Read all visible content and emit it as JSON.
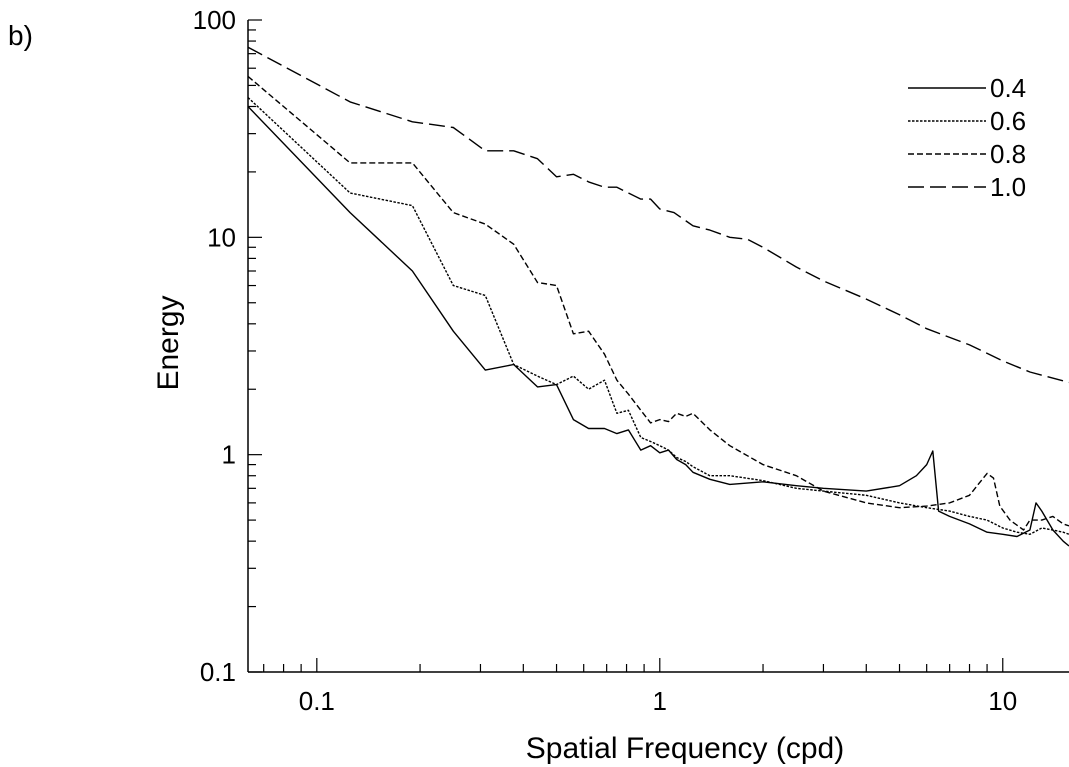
{
  "panel_label": "b)",
  "chart_data": {
    "type": "line",
    "title": "",
    "xlabel": "Spatial Frequency (cpd)",
    "ylabel": "Energy",
    "xscale": "log",
    "yscale": "log",
    "xlim": [
      0.063,
      15.6
    ],
    "ylim": [
      0.1,
      100
    ],
    "x_ticks": [
      {
        "value": 0.1,
        "label": "0.1"
      },
      {
        "value": 1,
        "label": "1"
      },
      {
        "value": 10,
        "label": "10"
      }
    ],
    "y_ticks": [
      {
        "value": 0.1,
        "label": "0.1"
      },
      {
        "value": 1,
        "label": "1"
      },
      {
        "value": 10,
        "label": "10"
      },
      {
        "value": 100,
        "label": "100"
      }
    ],
    "grid": false,
    "legend_position": "top-right",
    "series": [
      {
        "name": "0.4",
        "dash": "solid",
        "x": [
          0.063,
          0.125,
          0.19,
          0.25,
          0.31,
          0.375,
          0.44,
          0.5,
          0.56,
          0.62,
          0.69,
          0.75,
          0.81,
          0.88,
          0.94,
          1.0,
          1.06,
          1.12,
          1.19,
          1.25,
          1.4,
          1.6,
          2.0,
          2.5,
          3.0,
          4.0,
          5.0,
          5.6,
          6.0,
          6.25,
          6.5,
          7.0,
          8.0,
          9.0,
          10.0,
          11.0,
          12.0,
          12.5,
          13.0,
          14.0,
          15.0,
          15.6
        ],
        "y": [
          40,
          13,
          7,
          3.7,
          2.45,
          2.6,
          2.05,
          2.1,
          1.45,
          1.32,
          1.32,
          1.25,
          1.3,
          1.05,
          1.1,
          1.02,
          1.05,
          0.95,
          0.9,
          0.83,
          0.77,
          0.73,
          0.75,
          0.72,
          0.7,
          0.68,
          0.72,
          0.8,
          0.9,
          1.04,
          0.55,
          0.52,
          0.48,
          0.44,
          0.43,
          0.42,
          0.45,
          0.6,
          0.55,
          0.45,
          0.4,
          0.38
        ]
      },
      {
        "name": "0.6",
        "dash": "dotted",
        "x": [
          0.063,
          0.125,
          0.19,
          0.25,
          0.31,
          0.375,
          0.44,
          0.5,
          0.56,
          0.62,
          0.69,
          0.75,
          0.81,
          0.88,
          0.94,
          1.0,
          1.06,
          1.12,
          1.19,
          1.25,
          1.4,
          1.6,
          2.0,
          2.5,
          3.0,
          4.0,
          5.0,
          6.0,
          7.0,
          8.0,
          9.0,
          10.0,
          11.0,
          12.0,
          13.0,
          14.0,
          15.0,
          15.6
        ],
        "y": [
          44,
          16,
          14,
          6,
          5.4,
          2.6,
          2.3,
          2.1,
          2.3,
          2.0,
          2.2,
          1.55,
          1.6,
          1.2,
          1.15,
          1.1,
          1.05,
          0.97,
          0.93,
          0.88,
          0.8,
          0.8,
          0.76,
          0.7,
          0.68,
          0.65,
          0.6,
          0.57,
          0.55,
          0.52,
          0.5,
          0.46,
          0.44,
          0.43,
          0.46,
          0.45,
          0.44,
          0.43
        ]
      },
      {
        "name": "0.8",
        "dash": "short-dash",
        "x": [
          0.063,
          0.125,
          0.19,
          0.25,
          0.31,
          0.375,
          0.44,
          0.5,
          0.56,
          0.62,
          0.69,
          0.75,
          0.81,
          0.88,
          0.94,
          1.0,
          1.06,
          1.12,
          1.19,
          1.25,
          1.4,
          1.6,
          2.0,
          2.5,
          3.0,
          4.0,
          5.0,
          6.0,
          7.0,
          8.0,
          8.6,
          9.0,
          9.4,
          9.8,
          10.5,
          11.5,
          12.0,
          13.0,
          14.0,
          15.0,
          15.6
        ],
        "y": [
          55,
          22,
          22,
          13,
          11.5,
          9.3,
          6.2,
          6.0,
          3.6,
          3.7,
          2.9,
          2.2,
          1.9,
          1.6,
          1.4,
          1.45,
          1.42,
          1.55,
          1.5,
          1.55,
          1.3,
          1.1,
          0.9,
          0.8,
          0.68,
          0.6,
          0.57,
          0.58,
          0.6,
          0.65,
          0.75,
          0.82,
          0.78,
          0.58,
          0.5,
          0.45,
          0.5,
          0.5,
          0.52,
          0.48,
          0.47
        ]
      },
      {
        "name": "1.0",
        "dash": "long-dash",
        "x": [
          0.063,
          0.125,
          0.19,
          0.25,
          0.31,
          0.375,
          0.44,
          0.5,
          0.56,
          0.62,
          0.69,
          0.75,
          0.81,
          0.88,
          0.94,
          1.0,
          1.1,
          1.25,
          1.4,
          1.6,
          1.8,
          2.0,
          2.5,
          3.0,
          4.0,
          5.0,
          6.0,
          8.0,
          10.0,
          12.0,
          15.6
        ],
        "y": [
          75,
          42,
          34,
          32,
          25,
          25,
          23,
          19,
          19.5,
          18,
          17,
          17,
          16,
          15,
          15,
          13.5,
          13,
          11.3,
          10.8,
          10,
          9.8,
          9.0,
          7.3,
          6.3,
          5.2,
          4.4,
          3.8,
          3.2,
          2.7,
          2.4,
          2.15
        ]
      }
    ]
  }
}
